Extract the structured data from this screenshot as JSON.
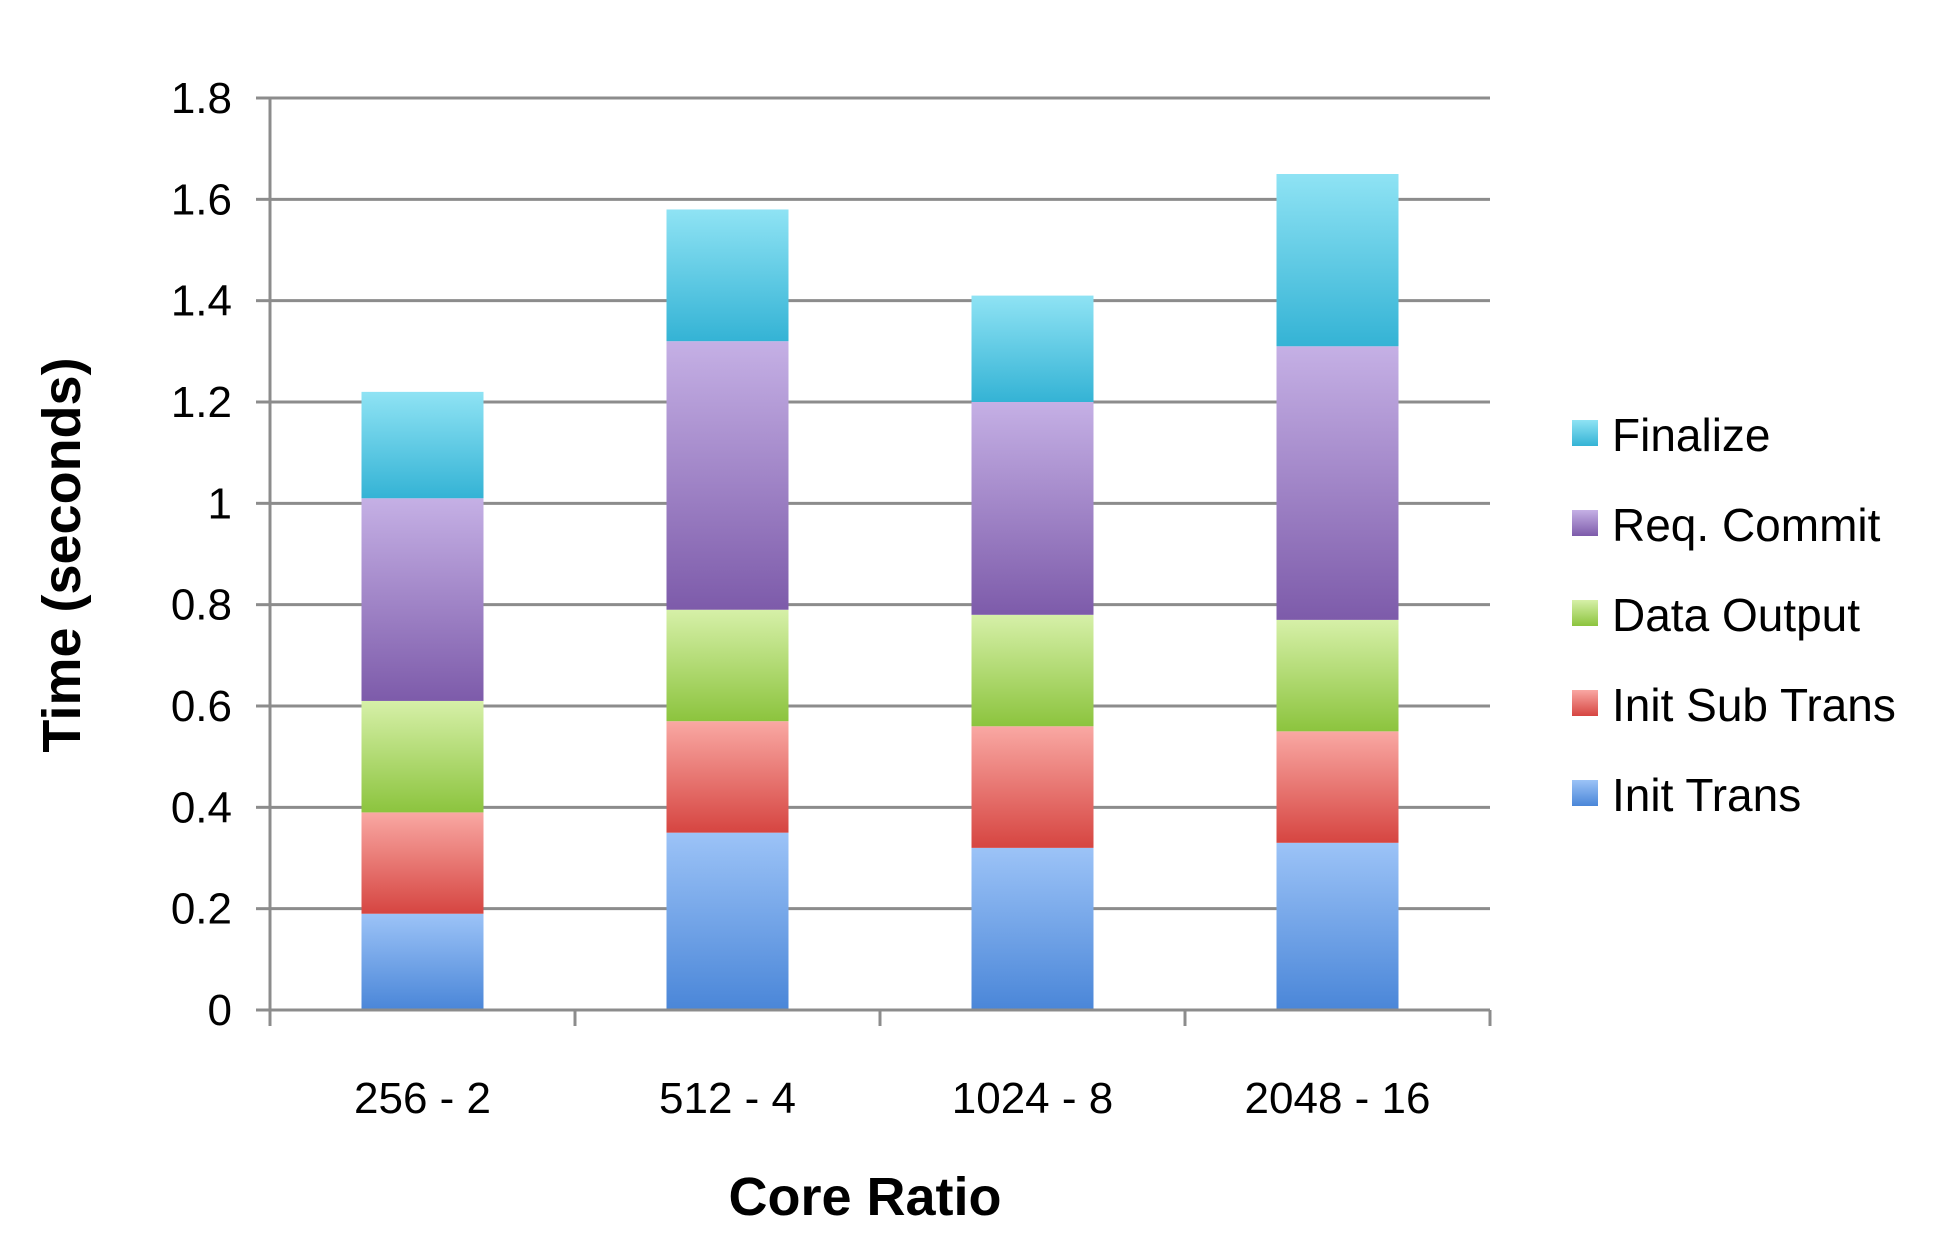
{
  "chart_data": {
    "type": "bar",
    "stacked": true,
    "title": "",
    "xlabel": "Core Ratio",
    "ylabel": "Time (seconds)",
    "categories": [
      "256 - 2",
      "512 - 4",
      "1024 - 8",
      "2048 - 16"
    ],
    "series": [
      {
        "name": "Init Trans",
        "values": [
          0.19,
          0.35,
          0.32,
          0.33
        ]
      },
      {
        "name": "Init Sub Trans",
        "values": [
          0.2,
          0.22,
          0.24,
          0.22
        ]
      },
      {
        "name": "Data Output",
        "values": [
          0.22,
          0.22,
          0.22,
          0.22
        ]
      },
      {
        "name": "Req. Commit",
        "values": [
          0.4,
          0.53,
          0.42,
          0.54
        ]
      },
      {
        "name": "Finalize",
        "values": [
          0.21,
          0.26,
          0.21,
          0.34
        ]
      }
    ],
    "ylim": [
      0,
      1.8
    ],
    "yticks": [
      "0",
      "0.2",
      "0.4",
      "0.6",
      "0.8",
      "1",
      "1.2",
      "1.4",
      "1.6",
      "1.8"
    ],
    "grid": true,
    "legend_position": "right",
    "legend_order": [
      "Finalize",
      "Req. Commit",
      "Data Output",
      "Init Sub Trans",
      "Init Trans"
    ],
    "colors": {
      "Init Trans": {
        "light": "#9CC3F7",
        "dark": "#4A86D8"
      },
      "Init Sub Trans": {
        "light": "#F9A8A3",
        "dark": "#D64541"
      },
      "Data Output": {
        "light": "#D6F0A8",
        "dark": "#8CC43E"
      },
      "Req. Commit": {
        "light": "#C5B0E5",
        "dark": "#7D5BAA"
      },
      "Finalize": {
        "light": "#8FE3F4",
        "dark": "#34B3D5"
      }
    }
  }
}
